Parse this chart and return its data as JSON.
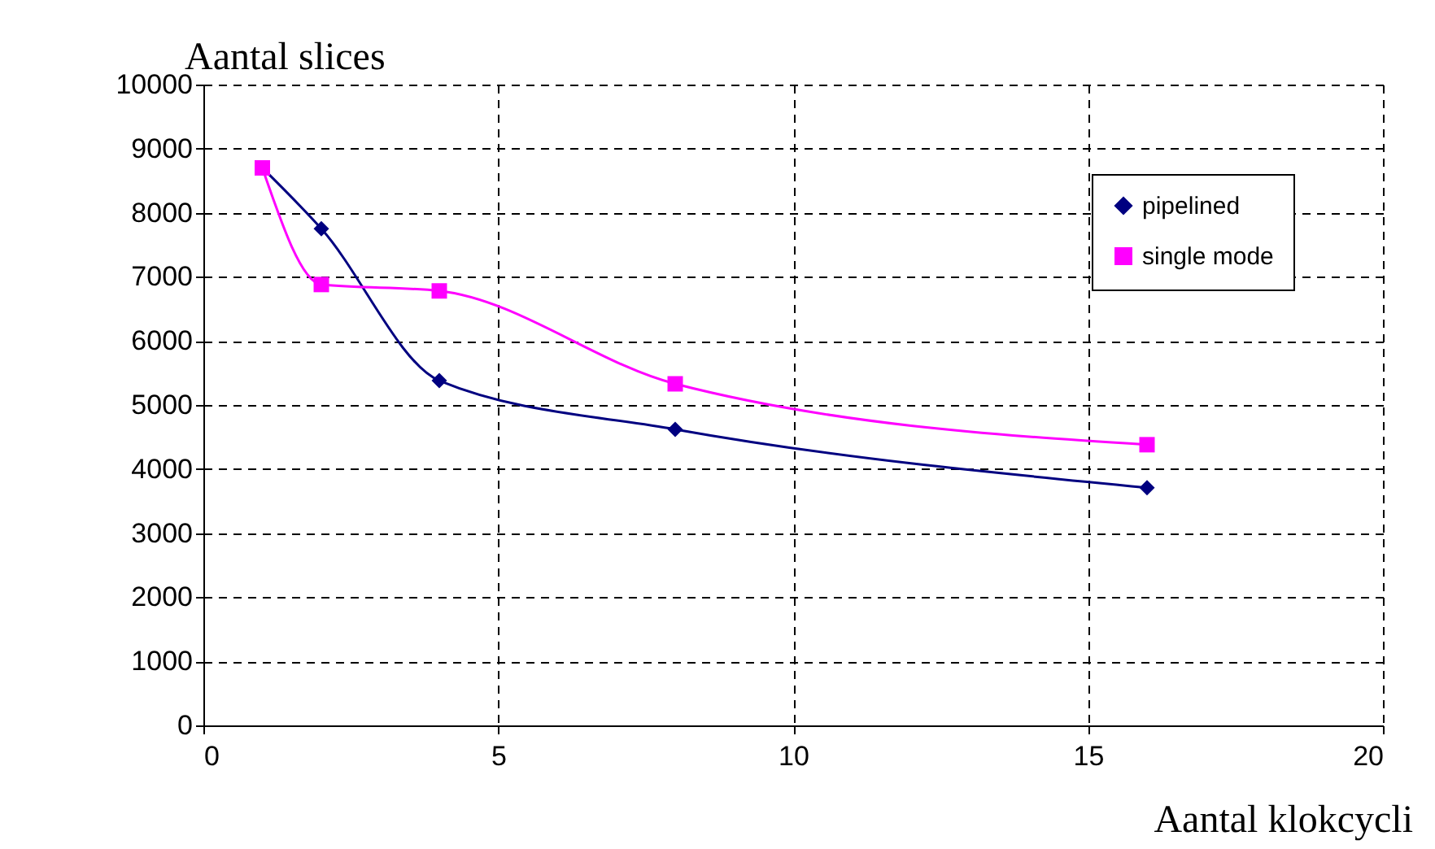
{
  "chart_data": {
    "type": "line",
    "xlabel": "Aantal klokcycli",
    "ylabel": "Aantal slices",
    "x": [
      1,
      2,
      4,
      8,
      16
    ],
    "series": [
      {
        "name": "pipelined",
        "color": "#000080",
        "marker": "diamond",
        "values": [
          8700,
          7750,
          5380,
          4620,
          3710
        ]
      },
      {
        "name": "single mode",
        "color": "#ff00ff",
        "marker": "square",
        "values": [
          8700,
          6880,
          6780,
          5330,
          4380
        ]
      }
    ],
    "xlim": [
      0,
      20
    ],
    "xticks": [
      0,
      5,
      10,
      15,
      20
    ],
    "ylim": [
      0,
      10000
    ],
    "yticks": [
      0,
      1000,
      2000,
      3000,
      4000,
      5000,
      6000,
      7000,
      8000,
      9000,
      10000
    ],
    "grid": true,
    "legend": "top right"
  }
}
